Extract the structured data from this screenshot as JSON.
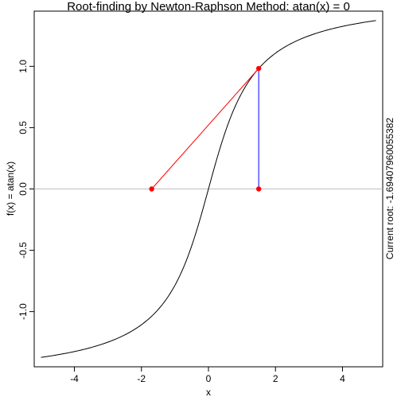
{
  "chart_data": {
    "type": "line",
    "title": "Root-finding by Newton-Raphson Method: atan(x) = 0",
    "xlabel": "x",
    "ylabel": "f(x) = atan(x)",
    "xlim": [
      -5.2,
      5.2
    ],
    "ylim": [
      -1.45,
      1.45
    ],
    "x_ticks": [
      -4,
      -2,
      0,
      2,
      4
    ],
    "x_tick_labels": [
      "-4",
      "-2",
      "0",
      "2",
      "4"
    ],
    "y_ticks": [
      -1.0,
      -0.5,
      0.0,
      0.5,
      1.0
    ],
    "y_tick_labels": [
      "-1.0",
      "-0.5",
      "0.0",
      "0.5",
      "1.0"
    ],
    "curve": {
      "function": "atan",
      "x_start": -5,
      "x_end": 5,
      "color": "#000000"
    },
    "zero_line": {
      "y": 0,
      "color": "#bebebe"
    },
    "current_x": 1.5,
    "next_x": -1.69407960055382,
    "tangent_color": "#ff0000",
    "vertical_color": "#0000ff",
    "point_color": "#ff0000",
    "side_text": "Current root: -1.69407960055382"
  }
}
